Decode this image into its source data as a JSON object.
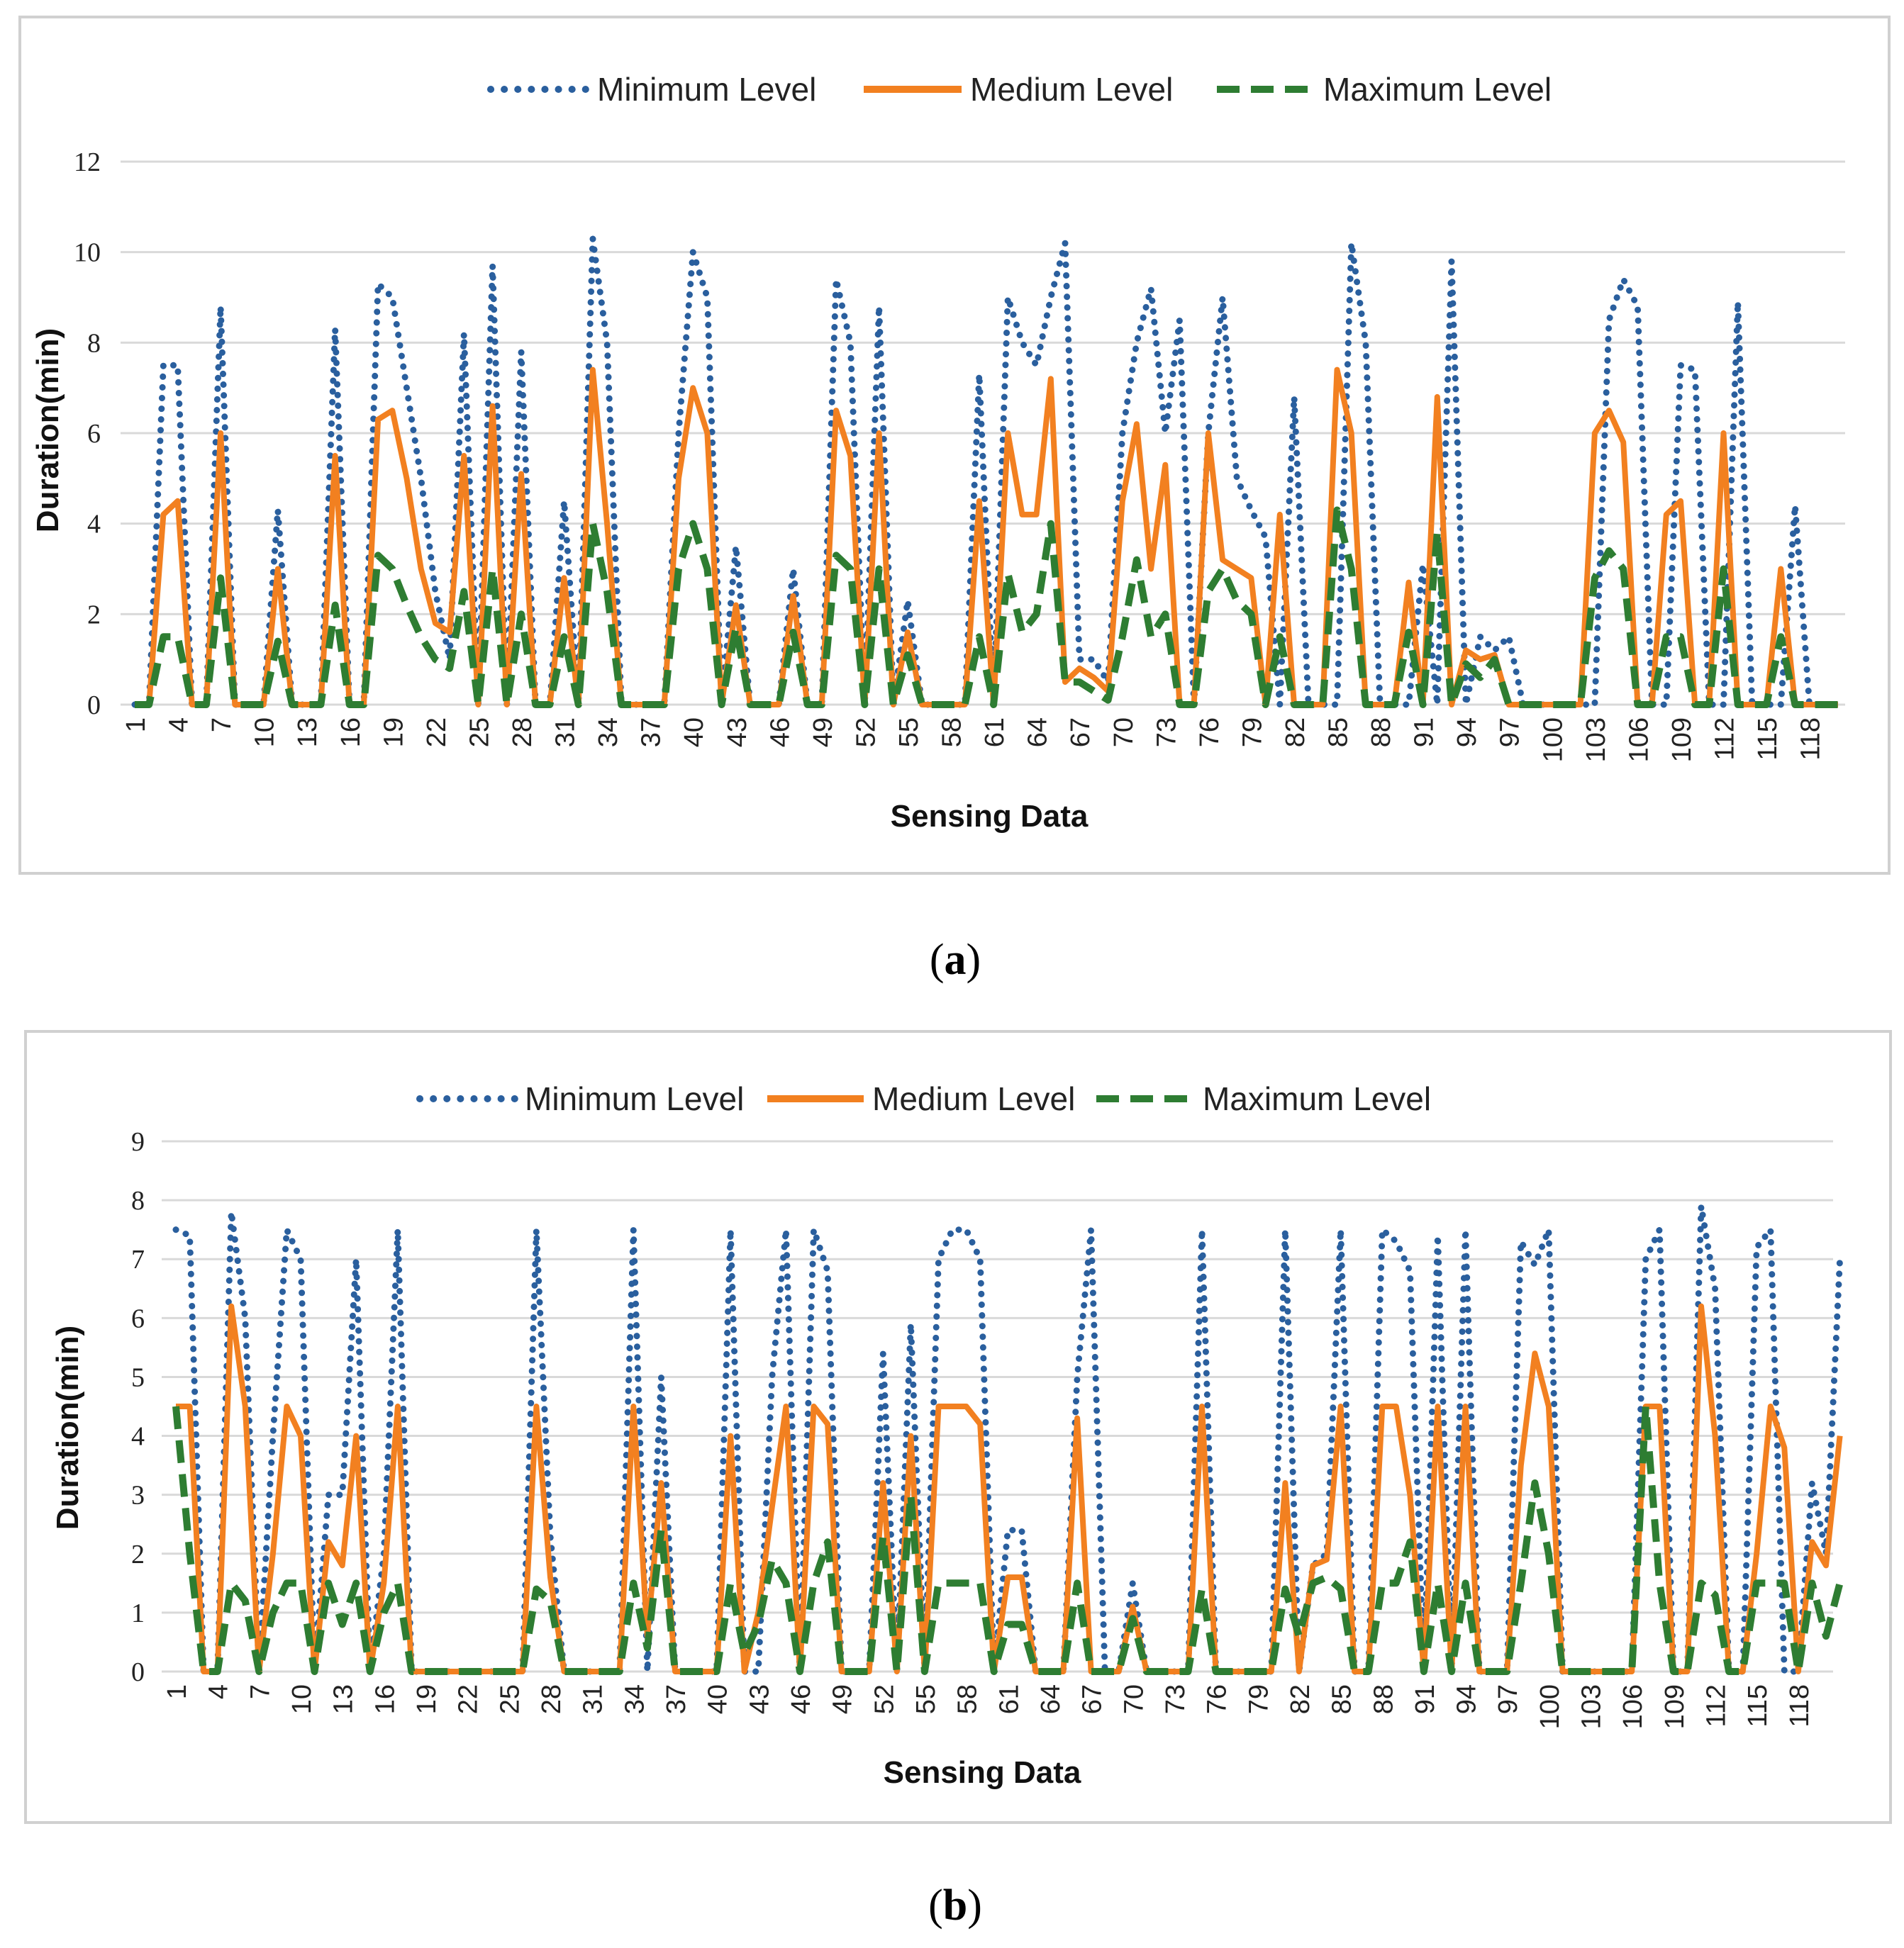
{
  "figure": {
    "panel_labels": [
      "a",
      "b"
    ]
  },
  "colors": {
    "minimum": "#2a5f9e",
    "medium": "#f28020",
    "maximum": "#2e7d32",
    "grid": "#d9d9d9",
    "frame": "#d0d0d0"
  },
  "chart_data": [
    {
      "type": "line",
      "panel": "a",
      "xlabel": "Sensing Data",
      "ylabel": "Duration(min)",
      "ylim": [
        0,
        12
      ],
      "yticks": [
        0,
        2,
        4,
        6,
        8,
        10,
        12
      ],
      "x_start": 1,
      "x_end": 120,
      "tick_labels": [
        "1",
        "4",
        "7",
        "10",
        "13",
        "16",
        "19",
        "22",
        "25",
        "28",
        "31",
        "34",
        "37",
        "40",
        "43",
        "46",
        "49",
        "52",
        "55",
        "58",
        "61",
        "64",
        "67",
        "70",
        "73",
        "76",
        "79",
        "82",
        "85",
        "88",
        "91",
        "94",
        "97",
        "100",
        "103",
        "106",
        "109",
        "112",
        "115",
        "118"
      ],
      "legend": [
        "Minimum Level",
        "Medium Level",
        "Maximum Level"
      ],
      "series": [
        {
          "name": "Minimum Level",
          "style": "dotted",
          "values": [
            0,
            0,
            7.5,
            7.5,
            0,
            0,
            8.8,
            0,
            0,
            0,
            4.3,
            0,
            0,
            0,
            8.3,
            0,
            0,
            9.3,
            9,
            7,
            5,
            2.5,
            1,
            8.2,
            0,
            9.7,
            0,
            7.8,
            0,
            0,
            4.5,
            0,
            10.3,
            8,
            0,
            0,
            0,
            0,
            6,
            10,
            9,
            0,
            3.5,
            0,
            0,
            0,
            3,
            0,
            0,
            9.4,
            8,
            0,
            8.8,
            0,
            2.3,
            0,
            0,
            0,
            0,
            7.3,
            0,
            9,
            8,
            7.5,
            9,
            10.2,
            1,
            1,
            0.5,
            6,
            8,
            9.2,
            6,
            8.5,
            0,
            6,
            9,
            5,
            4.3,
            3.7,
            0,
            6.8,
            0,
            0,
            0,
            10.2,
            8,
            0,
            0,
            0,
            3.1,
            0,
            9.8,
            0,
            1.5,
            1.2,
            1.5,
            0,
            0,
            0,
            0,
            0,
            0,
            8.5,
            9.4,
            8.8,
            0,
            0,
            7.5,
            7.4,
            0,
            0,
            8.9,
            0,
            0,
            0,
            4.4,
            0,
            0,
            0
          ]
        },
        {
          "name": "Medium Level",
          "style": "solid",
          "values": [
            0,
            0,
            4.2,
            4.5,
            0,
            0,
            6,
            0,
            0,
            0,
            3,
            0,
            0,
            0,
            5.5,
            0,
            0,
            6.3,
            6.5,
            5,
            3,
            1.8,
            1.6,
            5.5,
            0,
            6.6,
            0,
            5.1,
            0,
            0,
            2.8,
            0,
            7.4,
            4,
            0,
            0,
            0,
            0,
            5,
            7,
            6,
            0,
            2.2,
            0,
            0,
            0,
            2.4,
            0,
            0,
            6.5,
            5.5,
            0,
            6,
            0,
            1.6,
            0,
            0,
            0,
            0,
            4.5,
            0,
            6,
            4.2,
            4.2,
            7.2,
            0.5,
            0.8,
            0.6,
            0.3,
            4.5,
            6.2,
            3,
            5.3,
            0,
            0,
            6,
            3.2,
            3,
            2.8,
            0,
            4.2,
            0,
            0,
            0,
            7.4,
            6,
            0,
            0,
            0,
            2.7,
            0,
            6.8,
            0,
            1.2,
            1,
            1.1,
            0,
            0,
            0,
            0,
            0,
            0,
            6,
            6.5,
            5.8,
            0,
            0,
            4.2,
            4.5,
            0,
            0,
            6,
            0,
            0,
            0,
            3,
            0,
            0,
            0,
            0
          ]
        },
        {
          "name": "Maximum Level",
          "style": "dashed",
          "values": [
            0,
            0,
            1.5,
            1.5,
            0,
            0,
            2.8,
            0,
            0,
            0,
            1.4,
            0,
            0,
            0,
            2.2,
            0,
            0,
            3.3,
            3,
            2.2,
            1.5,
            1,
            0.8,
            2.5,
            0,
            3,
            0,
            2,
            0,
            0,
            1.5,
            0,
            4,
            2.5,
            0,
            0,
            0,
            0,
            3,
            4,
            3,
            0,
            1.7,
            0,
            0,
            0,
            1.6,
            0,
            0,
            3.3,
            3,
            0,
            3,
            0,
            1.1,
            0,
            0,
            0,
            0,
            1.5,
            0,
            2.9,
            1.6,
            2,
            4,
            0.5,
            0.5,
            0.3,
            0.1,
            1.5,
            3.2,
            1.5,
            2,
            0,
            0,
            2.5,
            3,
            2.3,
            2,
            0,
            1.5,
            0,
            0,
            0,
            4.3,
            3,
            0,
            0,
            0,
            1.6,
            0,
            3.8,
            0,
            0.9,
            0.6,
            1,
            0,
            0,
            0,
            0,
            0,
            0,
            2.8,
            3.4,
            3,
            0,
            0,
            1.5,
            1.5,
            0,
            0,
            3,
            0,
            0,
            0,
            1.5,
            0,
            0,
            0,
            0
          ]
        }
      ]
    },
    {
      "type": "line",
      "panel": "b",
      "xlabel": "Sensing Data",
      "ylabel": "Duration(min)",
      "ylim": [
        0,
        9
      ],
      "yticks": [
        0,
        1,
        2,
        3,
        4,
        5,
        6,
        7,
        8,
        9
      ],
      "x_start": 1,
      "x_end": 120,
      "tick_labels": [
        "1",
        "4",
        "7",
        "10",
        "13",
        "16",
        "19",
        "22",
        "25",
        "28",
        "31",
        "34",
        "37",
        "40",
        "43",
        "46",
        "49",
        "52",
        "55",
        "58",
        "61",
        "64",
        "67",
        "70",
        "73",
        "76",
        "79",
        "82",
        "85",
        "88",
        "91",
        "94",
        "97",
        "100",
        "103",
        "106",
        "109",
        "112",
        "115",
        "118"
      ],
      "legend": [
        "Minimum Level",
        "Medium Level",
        "Maximum Level"
      ],
      "series": [
        {
          "name": "Minimum Level",
          "style": "dotted",
          "values": [
            7.5,
            7.4,
            0,
            0,
            7.8,
            6,
            0,
            4,
            7.5,
            7,
            0,
            3,
            3,
            7,
            0,
            2,
            7.5,
            0,
            0,
            0,
            0,
            0,
            0,
            0,
            0,
            0,
            7.5,
            2.3,
            0,
            0,
            0,
            0,
            0,
            7.5,
            0,
            5,
            0,
            0,
            0,
            0,
            7.5,
            0,
            0,
            5,
            7.5,
            0,
            7.5,
            6.8,
            0,
            0,
            0,
            5.4,
            0,
            5.9,
            0,
            7,
            7.5,
            7.5,
            7,
            0,
            2.4,
            2.4,
            0,
            0,
            0,
            5,
            7.5,
            0,
            0,
            1.5,
            0,
            0,
            0,
            0,
            7.5,
            0,
            0,
            0,
            0,
            0,
            7.5,
            0,
            1.8,
            2,
            7.5,
            0,
            0,
            7.5,
            7.3,
            6.8,
            0,
            7.4,
            0,
            7.5,
            0,
            0,
            0,
            7.3,
            6.9,
            7.5,
            0,
            0,
            0,
            0,
            0,
            0,
            7,
            7.5,
            0,
            0,
            7.9,
            6.5,
            0,
            0,
            7.2,
            7.5,
            0,
            0,
            3.2,
            2,
            7
          ]
        },
        {
          "name": "Medium Level",
          "style": "solid",
          "values": [
            4.5,
            4.5,
            0,
            0,
            6.2,
            4.5,
            0,
            2,
            4.5,
            4,
            0,
            2.2,
            1.8,
            4,
            0,
            1.5,
            4.5,
            0,
            0,
            0,
            0,
            0,
            0,
            0,
            0,
            0,
            4.5,
            1.6,
            0,
            0,
            0,
            0,
            0,
            4.5,
            0.6,
            3.2,
            0,
            0,
            0,
            0,
            4,
            0,
            1,
            2.8,
            4.5,
            0,
            4.5,
            4.2,
            0,
            0,
            0,
            3.2,
            0,
            4,
            0,
            4.5,
            4.5,
            4.5,
            4.2,
            0,
            1.6,
            1.6,
            0,
            0,
            0,
            4.3,
            0,
            0,
            0,
            1.1,
            0,
            0,
            0,
            0,
            4.5,
            0,
            0,
            0,
            0,
            0,
            3.2,
            0,
            1.8,
            1.9,
            4.5,
            0,
            0,
            4.5,
            4.5,
            3,
            0,
            4.5,
            0,
            4.5,
            0,
            0,
            0,
            3.5,
            5.4,
            4.5,
            0,
            0,
            0,
            0,
            0,
            0,
            4.5,
            4.5,
            0,
            0,
            6.2,
            4,
            0,
            0,
            2,
            4.5,
            3.8,
            0,
            2.2,
            1.8,
            4
          ]
        },
        {
          "name": "Maximum Level",
          "style": "dashed",
          "values": [
            4.5,
            2,
            0,
            0,
            1.5,
            1.2,
            0,
            1,
            1.5,
            1.5,
            0,
            1.5,
            0.8,
            1.5,
            0,
            1,
            1.5,
            0,
            0,
            0,
            0,
            0,
            0,
            0,
            0,
            0,
            1.4,
            1.2,
            0,
            0,
            0,
            0,
            0,
            1.5,
            0.4,
            2.4,
            0,
            0,
            0,
            0,
            1.5,
            0.3,
            0.8,
            1.9,
            1.5,
            0,
            1.5,
            2.2,
            0,
            0,
            0,
            2.3,
            0,
            3,
            0,
            1.5,
            1.5,
            1.5,
            1.5,
            0,
            0.8,
            0.8,
            0,
            0,
            0,
            1.5,
            0,
            0,
            0,
            0.9,
            0,
            0,
            0,
            0,
            1.4,
            0,
            0,
            0,
            0,
            0,
            1.4,
            0.6,
            1.5,
            1.6,
            1.4,
            0,
            0,
            1.5,
            1.5,
            2.2,
            0,
            1.5,
            0,
            1.5,
            0,
            0,
            0,
            1.5,
            3.2,
            2,
            0,
            0,
            0,
            0,
            0,
            0,
            4.5,
            1.5,
            0,
            0,
            1.5,
            1.3,
            0,
            0,
            1.5,
            1.5,
            1.5,
            0,
            1.5,
            0.6,
            1.5
          ]
        }
      ]
    }
  ]
}
